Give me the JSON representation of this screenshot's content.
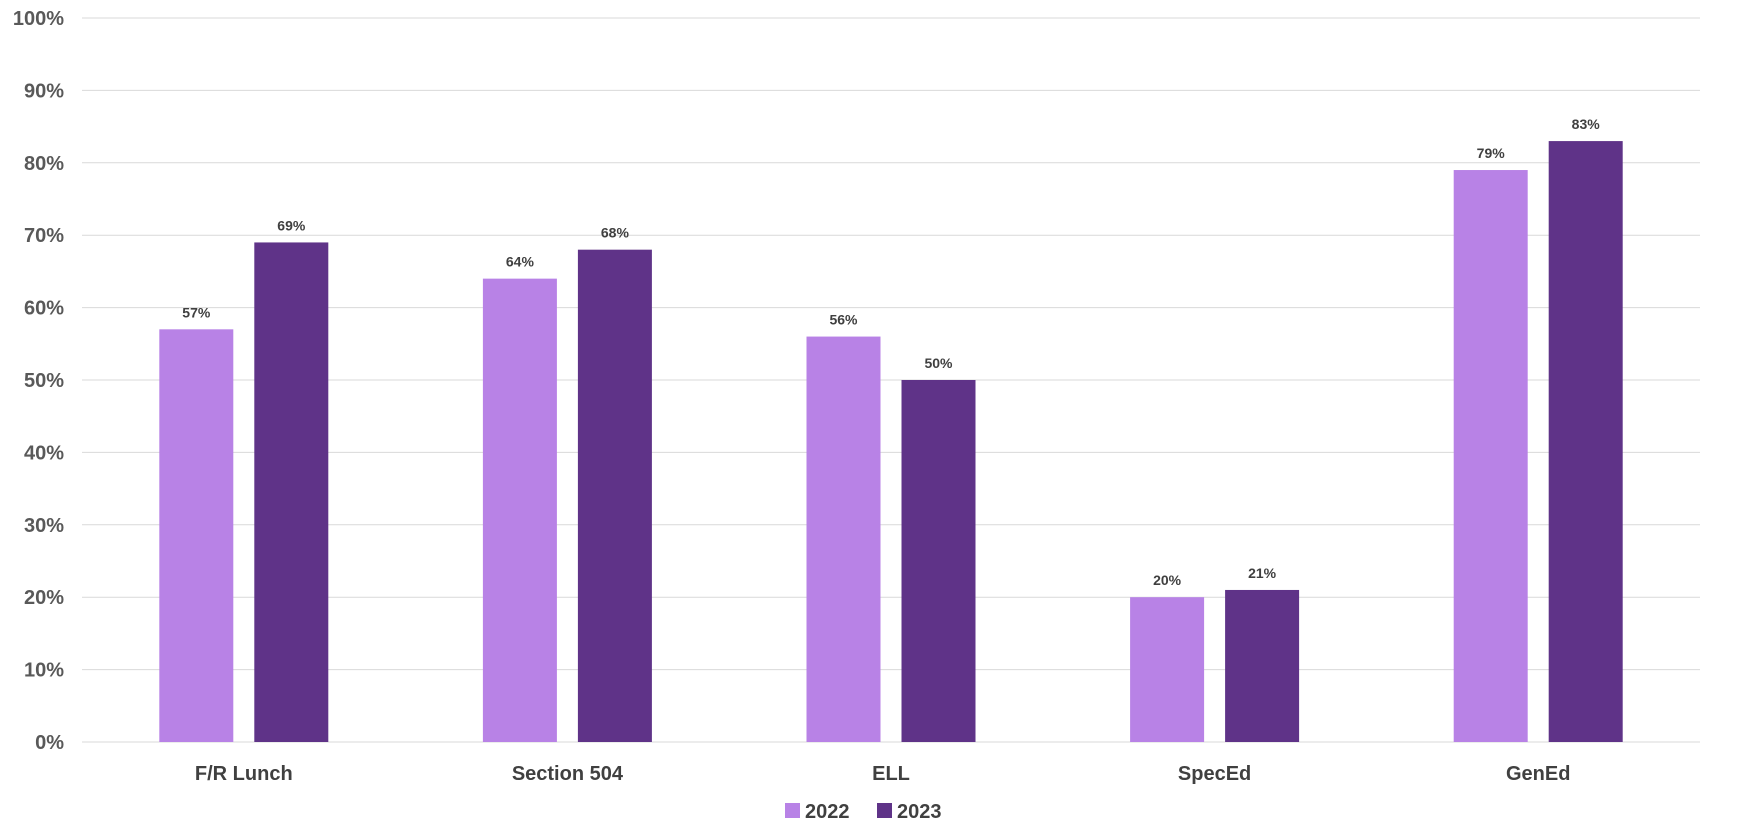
{
  "chart_data": {
    "type": "bar",
    "title": "",
    "xlabel": "",
    "ylabel": "",
    "categories": [
      "F/R Lunch",
      "Section 504",
      "ELL",
      "SpecEd",
      "GenEd"
    ],
    "series": [
      {
        "name": "2022",
        "color": "#b882e6",
        "values": [
          57,
          64,
          56,
          20,
          79
        ],
        "labels": [
          "57%",
          "64%",
          "56%",
          "20%",
          "79%"
        ]
      },
      {
        "name": "2023",
        "color": "#5f3388",
        "values": [
          69,
          68,
          50,
          21,
          83
        ],
        "labels": [
          "69%",
          "68%",
          "50%",
          "21%",
          "83%"
        ]
      }
    ],
    "ylim": [
      0,
      100
    ],
    "yticks": [
      0,
      10,
      20,
      30,
      40,
      50,
      60,
      70,
      80,
      90,
      100
    ],
    "ytick_labels": [
      "0%",
      "10%",
      "20%",
      "30%",
      "40%",
      "50%",
      "60%",
      "70%",
      "80%",
      "90%",
      "100%"
    ],
    "grid": true,
    "legend_position": "bottom-center"
  }
}
